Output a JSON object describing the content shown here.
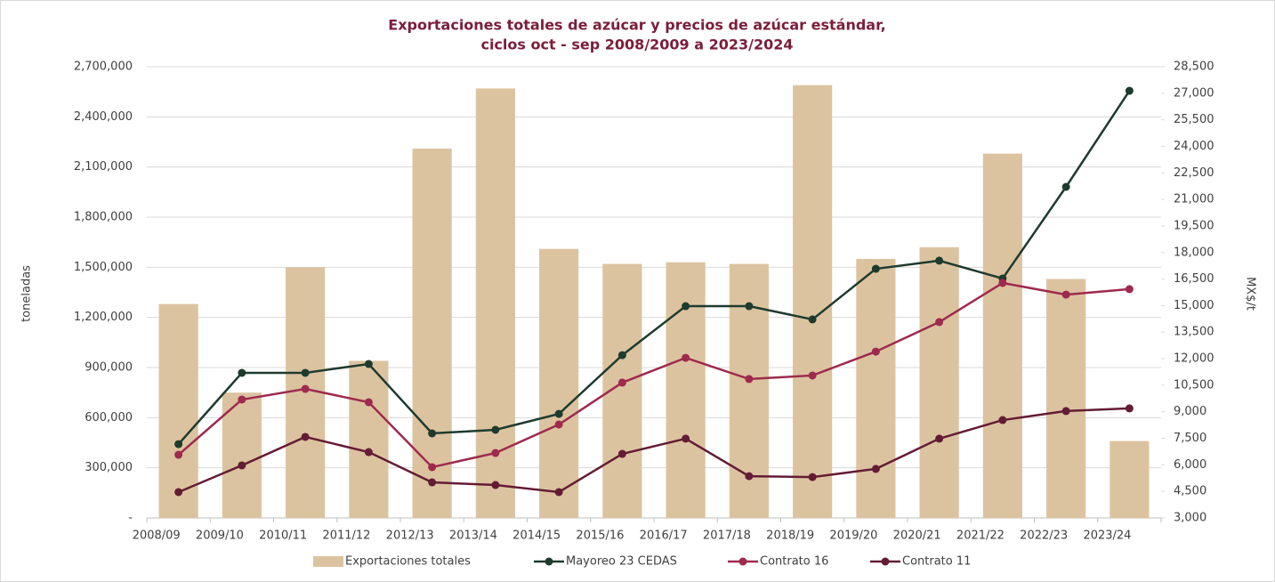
{
  "chart_data": {
    "type": "bar-line",
    "title": [
      "Exportaciones totales de azúcar y precios de azúcar estándar,",
      "ciclos oct - sep 2008/2009 a 2023/2024"
    ],
    "y_label": "toneladas",
    "y2_label": "MX$/t",
    "categories": [
      "2008/09",
      "2009/10",
      "2010/11",
      "2011/12",
      "2012/13",
      "2013/14",
      "2014/15",
      "2015/16",
      "2016/17",
      "2017/18",
      "2018/19",
      "2019/20",
      "2020/21",
      "2021/22",
      "2022/23",
      "2023/24"
    ],
    "series": [
      {
        "name": "Exportaciones totales",
        "type": "bar",
        "color": "#dcc3a0",
        "values": [
          1280000,
          750000,
          1500000,
          940000,
          2210000,
          2570000,
          1610000,
          1520000,
          1530000,
          1520000,
          2590000,
          1550000,
          1620000,
          2180000,
          1430000,
          460000
        ]
      },
      {
        "name": "Mayoreo 23 CEDAS",
        "type": "line",
        "axis": "y2",
        "color": "#1e3b2e",
        "values": [
          7170,
          11200,
          11200,
          11700,
          7780,
          7980,
          8880,
          12200,
          14970,
          14970,
          14220,
          17080,
          17540,
          16530,
          21710,
          27140
        ]
      },
      {
        "name": "Contrato 16",
        "type": "line",
        "axis": "y2",
        "color": "#9e2a4e",
        "values": [
          6570,
          9690,
          10290,
          9540,
          5870,
          6670,
          8280,
          10650,
          12050,
          10850,
          11050,
          12400,
          14070,
          16280,
          15620,
          15930
        ]
      },
      {
        "name": "Contrato 11",
        "type": "line",
        "axis": "y2",
        "color": "#641c34",
        "values": [
          4460,
          5970,
          7580,
          6720,
          5010,
          4860,
          4460,
          6620,
          7480,
          5360,
          5310,
          5770,
          7480,
          8530,
          9040,
          9190
        ]
      }
    ],
    "ylim": [
      0,
      2700000
    ],
    "yticks": [
      {
        "value": 0,
        "label": "-"
      },
      {
        "value": 300000,
        "label": "300,000"
      },
      {
        "value": 600000,
        "label": "600,000"
      },
      {
        "value": 900000,
        "label": "900,000"
      },
      {
        "value": 1200000,
        "label": "1,200,000"
      },
      {
        "value": 1500000,
        "label": "1,500,000"
      },
      {
        "value": 1800000,
        "label": "1,800,000"
      },
      {
        "value": 2100000,
        "label": "2,100,000"
      },
      {
        "value": 2400000,
        "label": "2,400,000"
      },
      {
        "value": 2700000,
        "label": "2,700,000"
      }
    ],
    "y2lim": [
      3000,
      28500
    ],
    "y2ticks": [
      {
        "value": 3000,
        "label": "3,000"
      },
      {
        "value": 4500,
        "label": "4,500"
      },
      {
        "value": 6000,
        "label": "6,000"
      },
      {
        "value": 7500,
        "label": "7,500"
      },
      {
        "value": 9000,
        "label": "9,000"
      },
      {
        "value": 10500,
        "label": "10,500"
      },
      {
        "value": 12000,
        "label": "12,000"
      },
      {
        "value": 13500,
        "label": "13,500"
      },
      {
        "value": 15000,
        "label": "15,000"
      },
      {
        "value": 16500,
        "label": "16,500"
      },
      {
        "value": 18000,
        "label": "18,000"
      },
      {
        "value": 19500,
        "label": "19,500"
      },
      {
        "value": 21000,
        "label": "21,000"
      },
      {
        "value": 22500,
        "label": "22,500"
      },
      {
        "value": 24000,
        "label": "24,000"
      },
      {
        "value": 25500,
        "label": "25,500"
      },
      {
        "value": 27000,
        "label": "27,000"
      },
      {
        "value": 28500,
        "label": "28,500"
      }
    ],
    "grid": true,
    "legend": "bottom"
  }
}
